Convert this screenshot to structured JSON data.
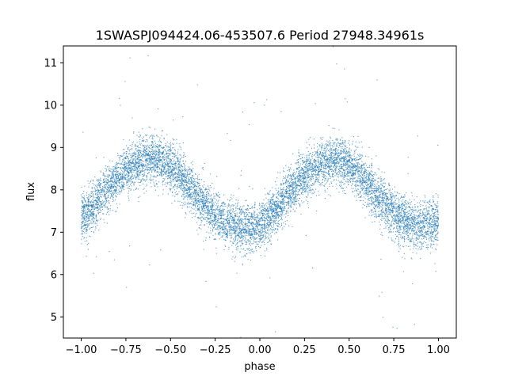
{
  "chart_data": {
    "type": "scatter",
    "title": "1SWASPJ094424.06-453507.6 Period 27948.34961s",
    "xlabel": "phase",
    "ylabel": "flux",
    "xlim": [
      -1.1,
      1.1
    ],
    "ylim": [
      4.5,
      11.4
    ],
    "xticks": [
      -1.0,
      -0.75,
      -0.5,
      -0.25,
      0.0,
      0.25,
      0.5,
      0.75,
      1.0
    ],
    "xtick_labels": [
      "−1.00",
      "−0.75",
      "−0.50",
      "−0.25",
      "0.00",
      "0.25",
      "0.50",
      "0.75",
      "1.00"
    ],
    "yticks": [
      5,
      6,
      7,
      8,
      9,
      10,
      11
    ],
    "ytick_labels": [
      "5",
      "6",
      "7",
      "8",
      "9",
      "10",
      "11"
    ],
    "grid": false,
    "legend": "none",
    "marker_color": "#1f77b4",
    "series": [
      {
        "x": [
          -1.0,
          -0.9,
          -0.8,
          -0.75,
          -0.7,
          -0.65,
          -0.6,
          -0.55,
          -0.5,
          -0.45,
          -0.4,
          -0.35,
          -0.3,
          -0.25,
          -0.2,
          -0.15,
          -0.1,
          -0.05,
          0.0,
          0.05,
          0.1,
          0.15,
          0.2,
          0.25,
          0.3,
          0.35,
          0.4,
          0.45,
          0.5,
          0.55,
          0.6,
          0.65,
          0.7,
          0.75,
          0.8,
          0.85,
          0.9,
          0.95,
          1.0
        ],
        "y": [
          7.3,
          7.8,
          8.25,
          8.45,
          8.6,
          8.7,
          8.75,
          8.7,
          8.55,
          8.35,
          8.1,
          7.85,
          7.6,
          7.4,
          7.25,
          7.15,
          7.1,
          7.1,
          7.15,
          7.35,
          7.6,
          7.9,
          8.15,
          8.35,
          8.5,
          8.62,
          8.7,
          8.7,
          8.6,
          8.4,
          8.15,
          7.9,
          7.65,
          7.45,
          7.3,
          7.2,
          7.15,
          7.2,
          7.3
        ],
        "y_scatter": 0.45
      }
    ]
  }
}
